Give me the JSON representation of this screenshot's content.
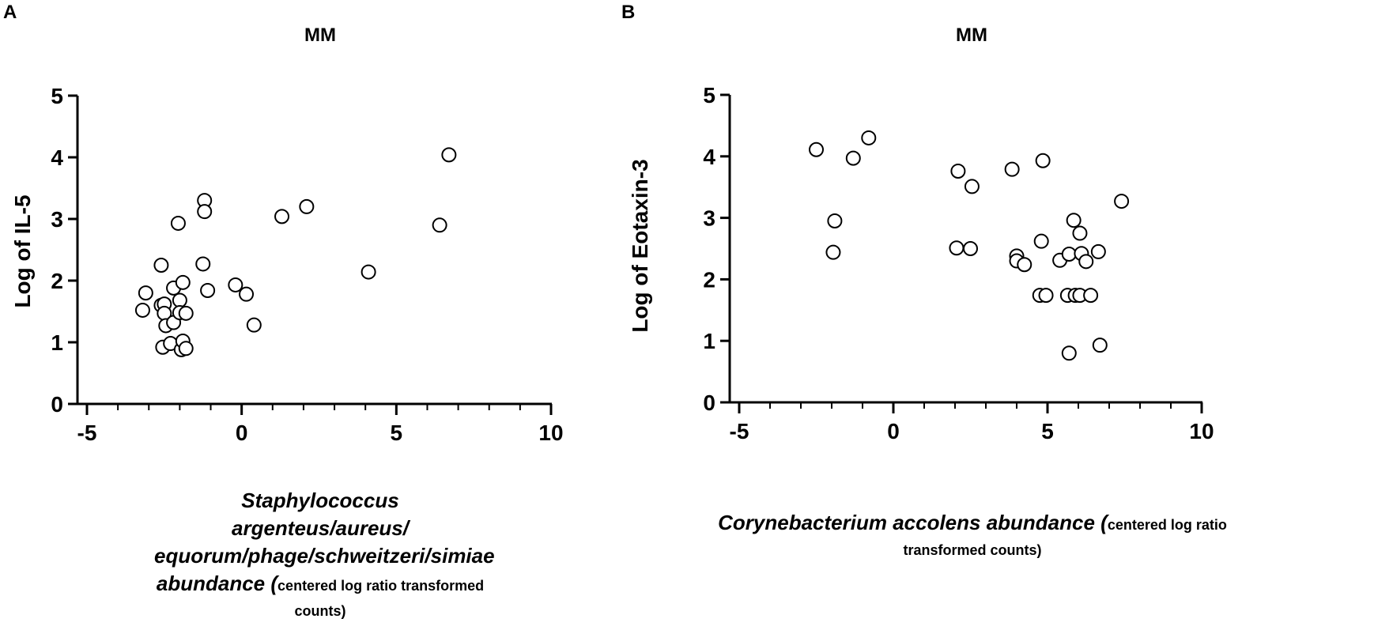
{
  "panels": {
    "a": {
      "letter": "A",
      "title": "MM",
      "ylabel": "Log of IL-5",
      "xlabel_main": "Staphylococcus argenteus/aureus/ equorum/phage/schweitzeri/simiae abundance ",
      "xlabel_paren": "(",
      "xlabel_sub": "centered log ratio transformed counts)"
    },
    "b": {
      "letter": "B",
      "title": "MM",
      "ylabel": "Log of Eotaxin-3",
      "xlabel_main": "Corynebacterium accolens abundance ",
      "xlabel_paren": "(",
      "xlabel_sub": "centered log ratio transformed counts)"
    }
  },
  "chart_data": [
    {
      "type": "scatter",
      "title": "MM",
      "xlabel": "Staphylococcus argenteus/aureus/equorum/phage/schweitzeri/simiae abundance (centered log ratio transformed counts)",
      "ylabel": "Log of IL-5",
      "xlim": [
        -5,
        10
      ],
      "ylim": [
        0,
        5
      ],
      "xticks": [
        -5,
        0,
        5,
        10
      ],
      "yticks": [
        0,
        1,
        2,
        3,
        4,
        5
      ],
      "grid": false,
      "marker": "open-circle",
      "points": [
        [
          -3.2,
          1.52
        ],
        [
          -3.1,
          1.8
        ],
        [
          -2.6,
          2.25
        ],
        [
          -2.6,
          1.6
        ],
        [
          -2.5,
          1.62
        ],
        [
          -2.5,
          1.47
        ],
        [
          -2.45,
          1.27
        ],
        [
          -2.55,
          0.92
        ],
        [
          -2.3,
          0.98
        ],
        [
          -2.2,
          1.88
        ],
        [
          -2.2,
          1.32
        ],
        [
          -2.05,
          2.93
        ],
        [
          -2.0,
          1.68
        ],
        [
          -2.0,
          1.48
        ],
        [
          -1.95,
          0.88
        ],
        [
          -1.9,
          1.97
        ],
        [
          -1.9,
          1.02
        ],
        [
          -1.8,
          0.9
        ],
        [
          -1.8,
          1.47
        ],
        [
          -1.2,
          3.3
        ],
        [
          -1.2,
          3.12
        ],
        [
          -1.25,
          2.27
        ],
        [
          -1.1,
          1.84
        ],
        [
          -0.2,
          1.93
        ],
        [
          0.15,
          1.78
        ],
        [
          0.4,
          1.28
        ],
        [
          1.3,
          3.04
        ],
        [
          2.1,
          3.2
        ],
        [
          4.1,
          2.14
        ],
        [
          6.4,
          2.9
        ],
        [
          6.7,
          4.04
        ]
      ]
    },
    {
      "type": "scatter",
      "title": "MM",
      "xlabel": "Corynebacterium accolens abundance (centered log ratio transformed counts)",
      "ylabel": "Log of Eotaxin-3",
      "xlim": [
        -5,
        10
      ],
      "ylim": [
        0,
        5
      ],
      "xticks": [
        -5,
        0,
        5,
        10
      ],
      "yticks": [
        0,
        1,
        2,
        3,
        4,
        5
      ],
      "grid": false,
      "marker": "open-circle",
      "points": [
        [
          -2.5,
          4.11
        ],
        [
          -1.3,
          3.97
        ],
        [
          -0.8,
          4.3
        ],
        [
          -1.9,
          2.95
        ],
        [
          -1.95,
          2.44
        ],
        [
          2.1,
          3.76
        ],
        [
          2.55,
          3.51
        ],
        [
          2.05,
          2.51
        ],
        [
          2.5,
          2.5
        ],
        [
          3.85,
          3.79
        ],
        [
          4.85,
          3.93
        ],
        [
          4.0,
          2.38
        ],
        [
          4.0,
          2.3
        ],
        [
          4.25,
          2.24
        ],
        [
          4.8,
          2.62
        ],
        [
          4.75,
          1.74
        ],
        [
          4.95,
          1.74
        ],
        [
          5.4,
          2.31
        ],
        [
          5.7,
          2.41
        ],
        [
          5.65,
          1.74
        ],
        [
          5.85,
          2.96
        ],
        [
          5.9,
          1.74
        ],
        [
          6.05,
          2.75
        ],
        [
          6.1,
          2.42
        ],
        [
          6.05,
          1.74
        ],
        [
          6.25,
          2.29
        ],
        [
          6.4,
          1.74
        ],
        [
          6.65,
          2.45
        ],
        [
          6.7,
          0.93
        ],
        [
          5.7,
          0.8
        ],
        [
          7.4,
          3.27
        ]
      ]
    }
  ]
}
